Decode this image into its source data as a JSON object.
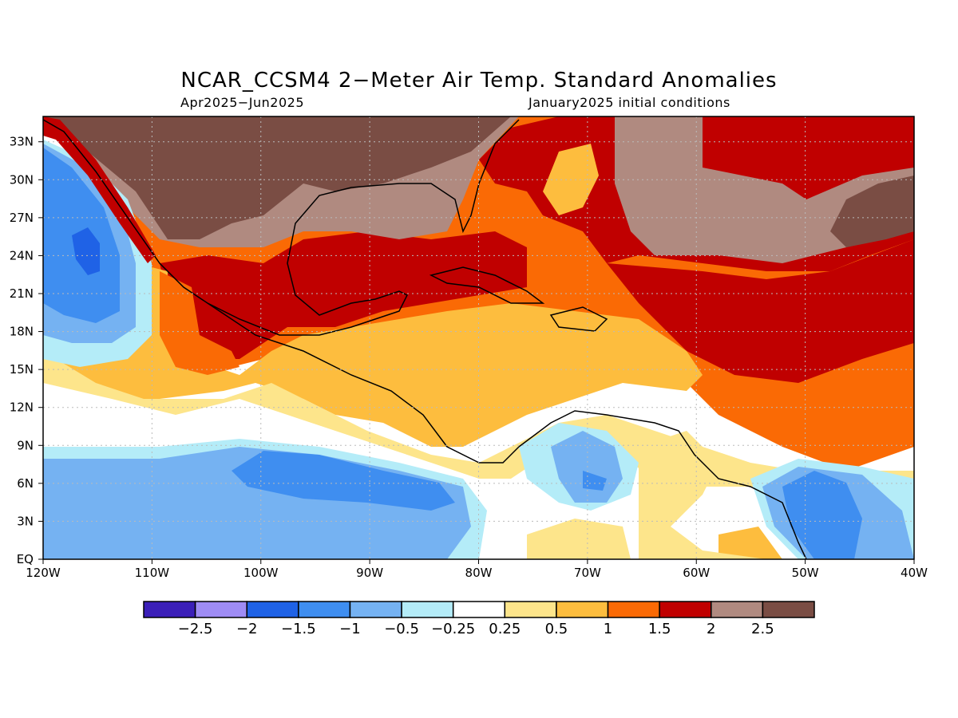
{
  "title": "NCAR_CCSM4 2−Meter Air Temp. Standard Anomalies",
  "period": "Apr2025−Jun2025",
  "init": "January2025 initial conditions",
  "map": {
    "lon_range": [
      -120,
      -40
    ],
    "lat_range": [
      0,
      35
    ],
    "x_ticks": [
      "120W",
      "110W",
      "100W",
      "90W",
      "80W",
      "70W",
      "60W",
      "50W",
      "40W"
    ],
    "y_ticks": [
      "EQ",
      "3N",
      "6N",
      "9N",
      "12N",
      "15N",
      "18N",
      "21N",
      "24N",
      "27N",
      "30N",
      "33N"
    ],
    "grid": "dotted"
  },
  "colorbar": {
    "labels": [
      "−2.5",
      "−2",
      "−1.5",
      "−1",
      "−0.5",
      "−0.25",
      "0.25",
      "0.5",
      "1",
      "1.5",
      "2",
      "2.5"
    ],
    "colors": [
      "#3b1fb8",
      "#9f8cf5",
      "#1f62e6",
      "#3f8ef0",
      "#75b2f2",
      "#b4ecf8",
      "#ffffff",
      "#fde58b",
      "#fdbd3e",
      "#fa6a05",
      "#c00000",
      "#b08a80",
      "#7a4d44"
    ]
  },
  "palette": {
    "dark_brown": "#7a4d44",
    "light_brown": "#b08a80",
    "dark_red": "#c00000",
    "orange": "#fa6a05",
    "light_orange": "#fdbd3e",
    "yellow": "#fde58b",
    "white": "#ffffff",
    "light_cyan": "#b4ecf8",
    "light_blue": "#75b2f2",
    "mid_blue": "#3f8ef0",
    "blue": "#1f62e6"
  }
}
